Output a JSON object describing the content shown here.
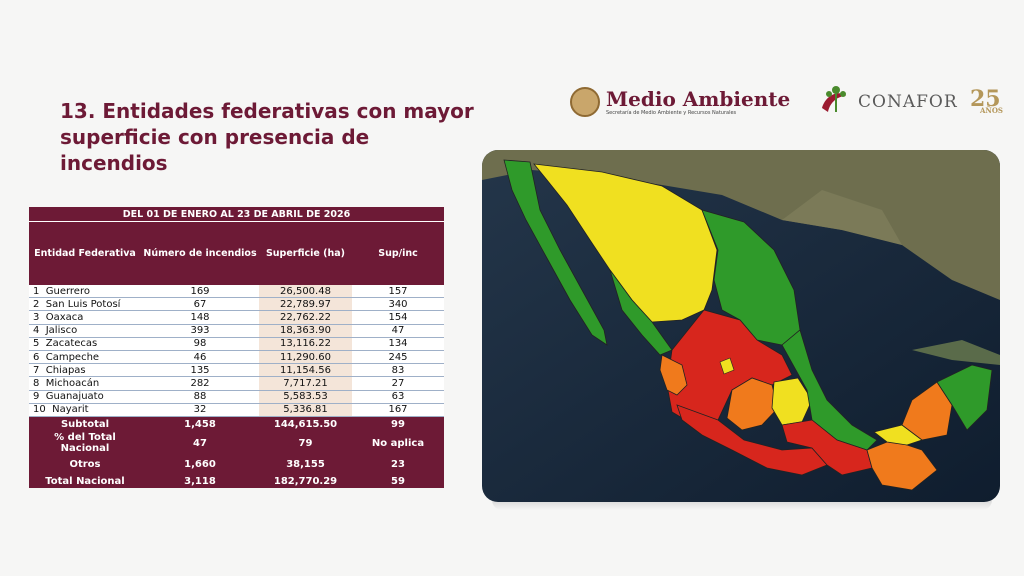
{
  "slide": {
    "title": "13. Entidades federativas con mayor superficie con presencia de incendios"
  },
  "logos": {
    "medio_ambiente": "Medio Ambiente",
    "medio_ambiente_sub": "Secretaría de Medio Ambiente y Recursos Naturales",
    "conafor": "CONAFOR",
    "anniversary": "25",
    "anniversary_sub": "AÑOS"
  },
  "table": {
    "period": "DEL 01 DE ENERO AL 23 DE ABRIL DE 2026",
    "headers": {
      "entidad": "Entidad Federativa",
      "incendios": "Número de incendios",
      "superficie": "Superficie (ha)",
      "supinc": "Sup/inc"
    },
    "rows": [
      {
        "n": "1",
        "entidad": "Guerrero",
        "incendios": "169",
        "superficie": "26,500.48",
        "supinc": "157"
      },
      {
        "n": "2",
        "entidad": "San Luis Potosí",
        "incendios": "67",
        "superficie": "22,789.97",
        "supinc": "340"
      },
      {
        "n": "3",
        "entidad": "Oaxaca",
        "incendios": "148",
        "superficie": "22,762.22",
        "supinc": "154"
      },
      {
        "n": "4",
        "entidad": "Jalisco",
        "incendios": "393",
        "superficie": "18,363.90",
        "supinc": "47"
      },
      {
        "n": "5",
        "entidad": "Zacatecas",
        "incendios": "98",
        "superficie": "13,116.22",
        "supinc": "134"
      },
      {
        "n": "6",
        "entidad": "Campeche",
        "incendios": "46",
        "superficie": "11,290.60",
        "supinc": "245"
      },
      {
        "n": "7",
        "entidad": "Chiapas",
        "incendios": "135",
        "superficie": "11,154.56",
        "supinc": "83"
      },
      {
        "n": "8",
        "entidad": "Michoacán",
        "incendios": "282",
        "superficie": "7,717.21",
        "supinc": "27"
      },
      {
        "n": "9",
        "entidad": "Guanajuato",
        "incendios": "88",
        "superficie": "5,583.53",
        "supinc": "63"
      },
      {
        "n": "10",
        "entidad": "Nayarit",
        "incendios": "32",
        "superficie": "5,336.81",
        "supinc": "167"
      }
    ],
    "subtotal": {
      "label": "Subtotal",
      "incendios": "1,458",
      "superficie": "144,615.50",
      "supinc": "99"
    },
    "porcentaje": {
      "label": "% del Total Nacional",
      "incendios": "47",
      "superficie": "79",
      "supinc": "No aplica"
    },
    "otros": {
      "label": "Otros",
      "incendios": "1,660",
      "superficie": "38,155",
      "supinc": "23"
    },
    "total": {
      "label": "Total Nacional",
      "incendios": "3,118",
      "superficie": "182,770.29",
      "supinc": "59"
    }
  },
  "map": {
    "colors": {
      "green": "#2f9a2a",
      "yellow": "#f0e020",
      "orange": "#f07a1c",
      "red": "#d7261d"
    }
  }
}
